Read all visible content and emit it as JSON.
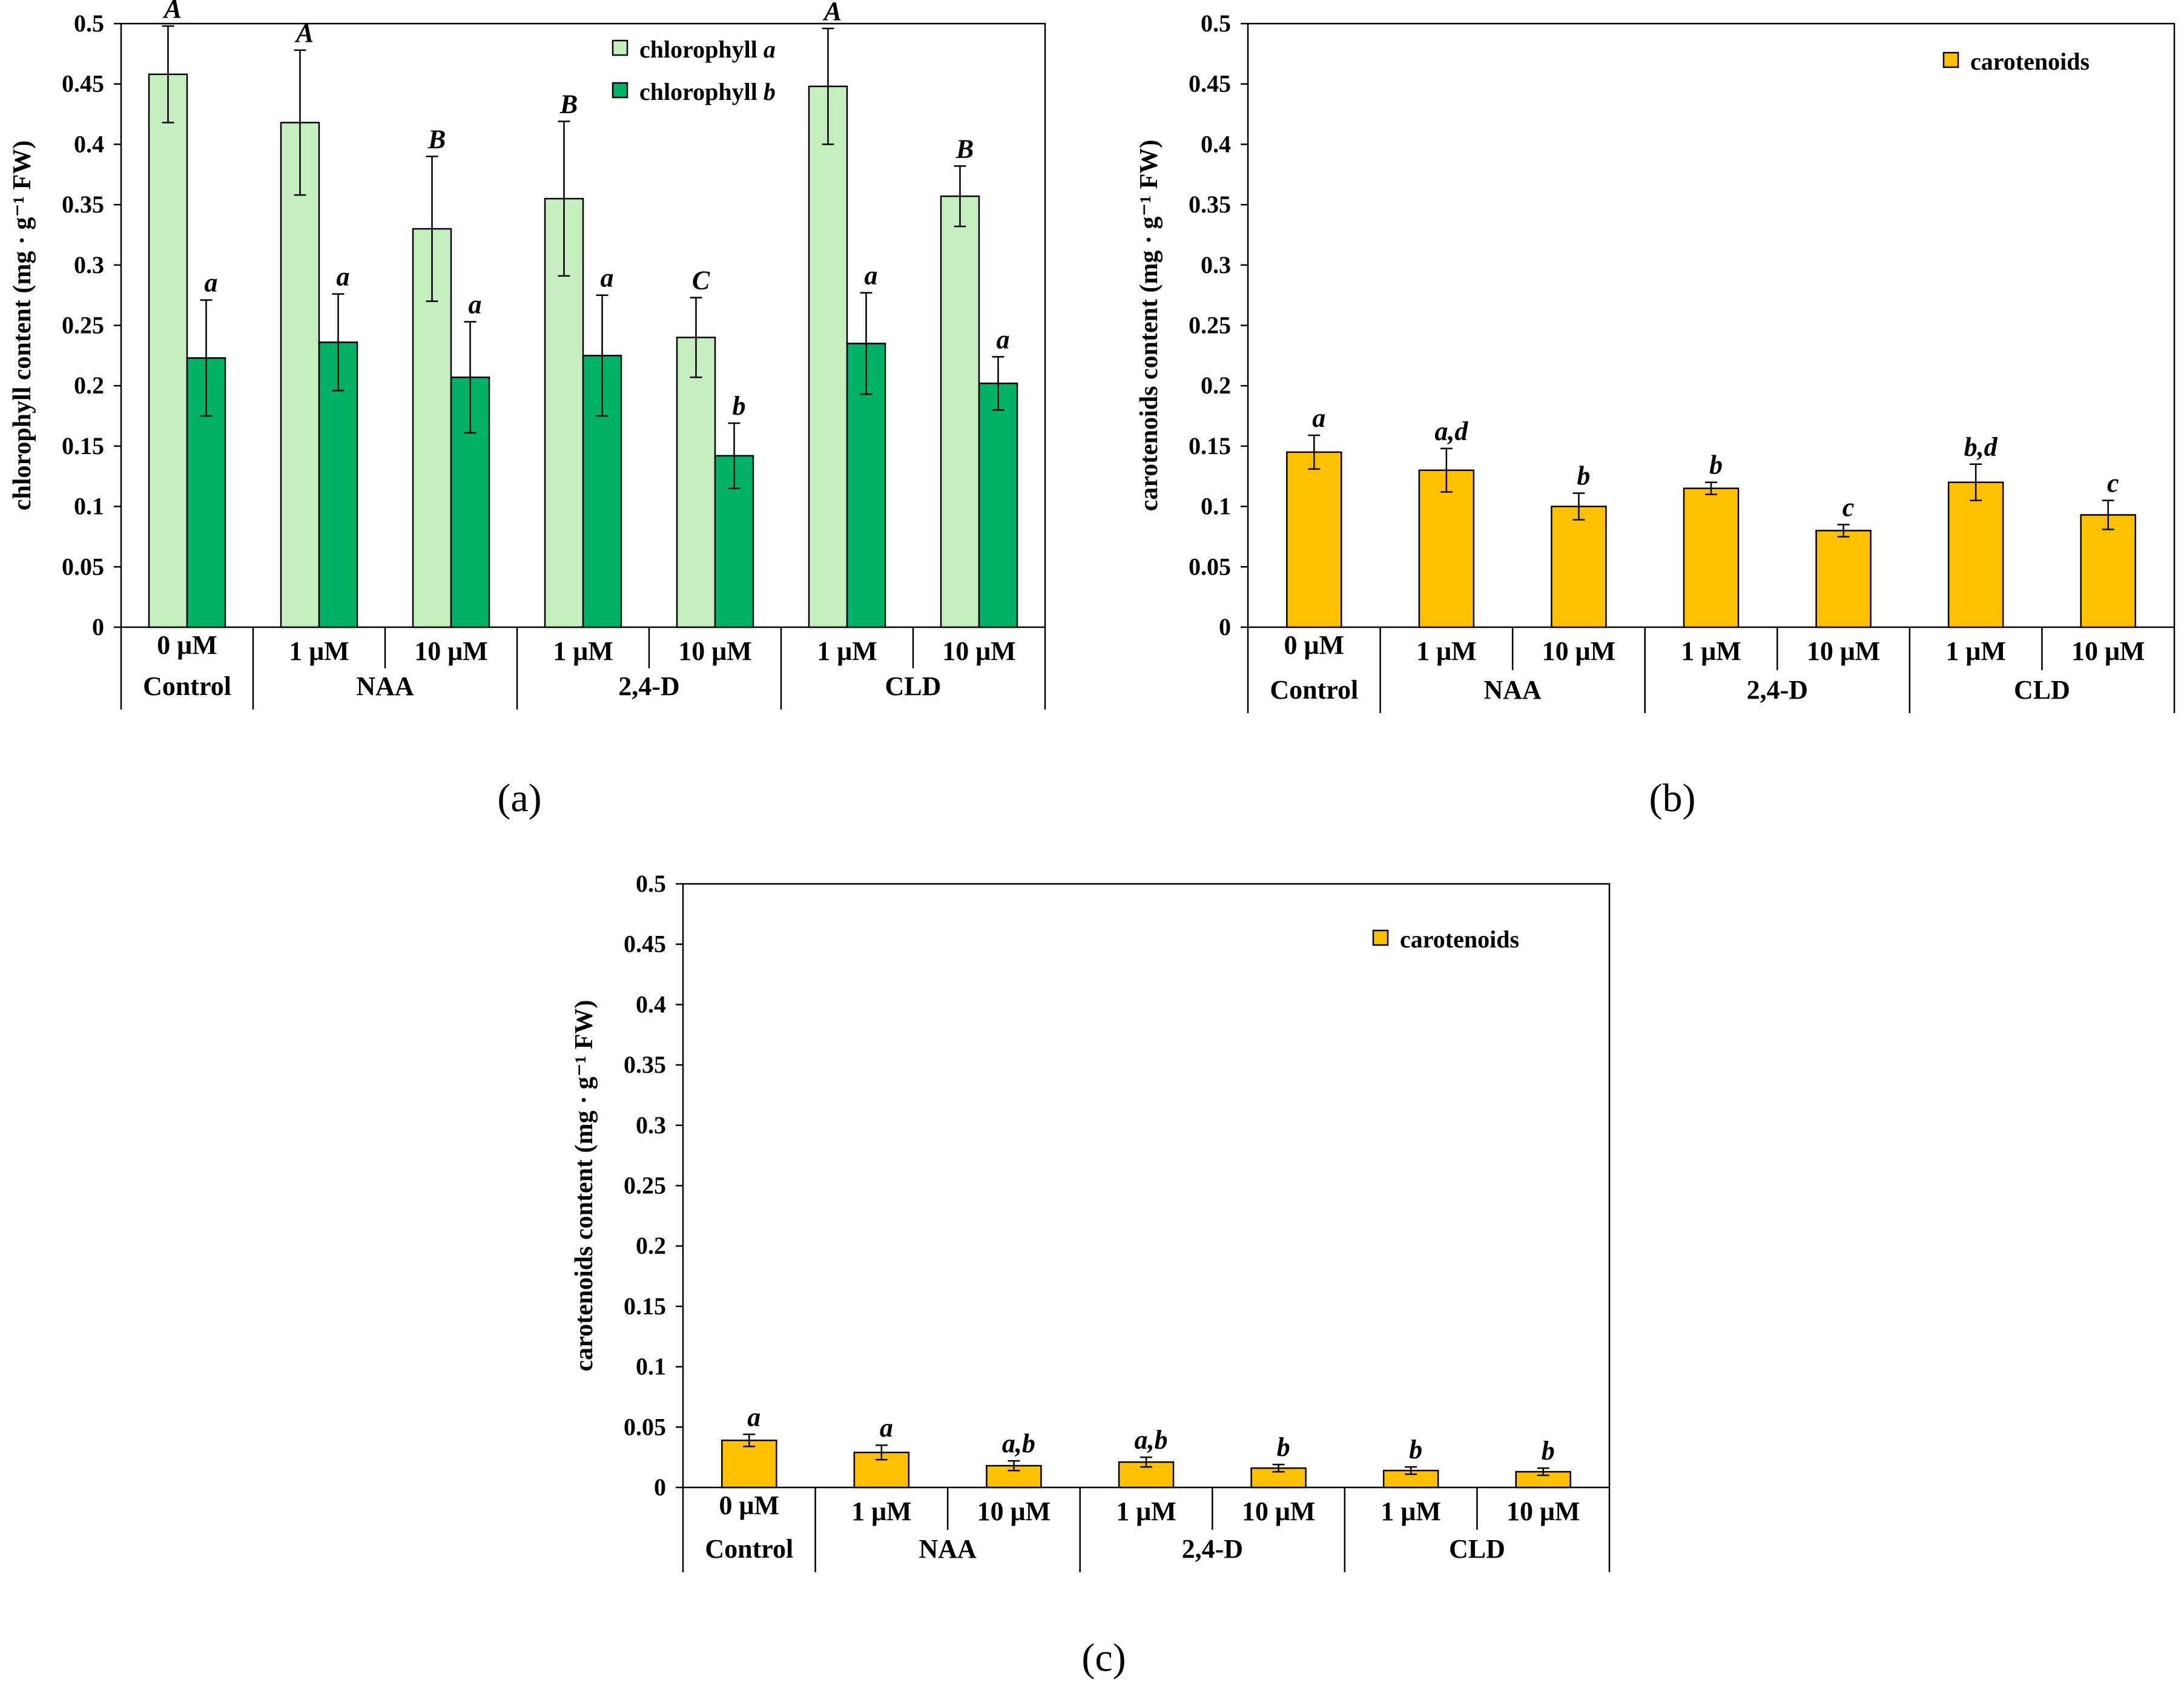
{
  "colors": {
    "chlorophyll_a": "#c6efc0",
    "chlorophyll_b": "#00b166",
    "carotenoids": "#ffc000",
    "axis": "#000000",
    "ghost_label": "#f2f2f2"
  },
  "chart_data": [
    {
      "id": "a",
      "panel_label": "(a)",
      "type": "bar",
      "ylabel": "chlorophyll content (mg · g⁻¹ FW)",
      "ylim": [
        0,
        0.5
      ],
      "yticks": [
        "0",
        "0.05",
        "0.1",
        "0.15",
        "0.2",
        "0.25",
        "0.3",
        "0.35",
        "0.4",
        "0.45",
        "0.5"
      ],
      "ghost_label": "0 μM",
      "categories": [
        "Control",
        "1 μM",
        "10 μM",
        "1 μM",
        "10 μM",
        "1 μM",
        "10 μM"
      ],
      "groups": [
        {
          "name": "Control",
          "span": [
            0,
            0
          ]
        },
        {
          "name": "NAA",
          "span": [
            1,
            2
          ]
        },
        {
          "name": "2,4-D",
          "span": [
            3,
            4
          ]
        },
        {
          "name": "CLD",
          "span": [
            5,
            6
          ]
        }
      ],
      "legend": {
        "position": "top-right",
        "entries": [
          "chlorophyll a",
          "chlorophyll b"
        ]
      },
      "series": [
        {
          "name": "chlorophyll a",
          "color_key": "chlorophyll_a",
          "values": [
            0.458,
            0.418,
            0.33,
            0.355,
            0.24,
            0.448,
            0.357
          ],
          "errors": [
            0.04,
            0.06,
            0.06,
            0.064,
            0.033,
            0.048,
            0.025
          ],
          "significance": [
            "A",
            "A",
            "B",
            "B",
            "C",
            "A",
            "B"
          ]
        },
        {
          "name": "chlorophyll b",
          "color_key": "chlorophyll_b",
          "values": [
            0.223,
            0.236,
            0.207,
            0.225,
            0.142,
            0.235,
            0.202
          ],
          "errors": [
            0.048,
            0.04,
            0.046,
            0.05,
            0.027,
            0.042,
            0.022
          ],
          "significance": [
            "a",
            "a",
            "a",
            "a",
            "b",
            "a",
            "a"
          ]
        }
      ]
    },
    {
      "id": "b",
      "panel_label": "(b)",
      "type": "bar",
      "ylabel": "carotenoids content (mg · g⁻¹ FW)",
      "ylim": [
        0,
        0.5
      ],
      "yticks": [
        "0",
        "0.05",
        "0.1",
        "0.15",
        "0.2",
        "0.25",
        "0.3",
        "0.35",
        "0.4",
        "0.45",
        "0.5"
      ],
      "ghost_label": "0 μM",
      "categories": [
        "Control",
        "1 μM",
        "10 μM",
        "1 μM",
        "10 μM",
        "1 μM",
        "10 μM"
      ],
      "groups": [
        {
          "name": "Control",
          "span": [
            0,
            0
          ]
        },
        {
          "name": "NAA",
          "span": [
            1,
            2
          ]
        },
        {
          "name": "2,4-D",
          "span": [
            3,
            4
          ]
        },
        {
          "name": "CLD",
          "span": [
            5,
            6
          ]
        }
      ],
      "legend": {
        "position": "top-right",
        "entries": [
          "carotenoids"
        ]
      },
      "series": [
        {
          "name": "carotenoids",
          "color_key": "carotenoids",
          "values": [
            0.145,
            0.13,
            0.1,
            0.115,
            0.08,
            0.12,
            0.093
          ],
          "errors": [
            0.014,
            0.018,
            0.011,
            0.005,
            0.005,
            0.015,
            0.012
          ],
          "significance": [
            "a",
            "a,d",
            "b",
            "b",
            "c",
            "b,d",
            "c"
          ]
        }
      ]
    },
    {
      "id": "c",
      "panel_label": "(c)",
      "type": "bar",
      "ylabel": "carotenoids content (mg · g⁻¹ FW)",
      "ylim": [
        0,
        0.5
      ],
      "yticks": [
        "0",
        "0.05",
        "0.1",
        "0.15",
        "0.2",
        "0.25",
        "0.3",
        "0.35",
        "0.4",
        "0.45",
        "0.5"
      ],
      "ghost_label": "0 μM",
      "categories": [
        "Control",
        "1 μM",
        "10 μM",
        "1 μM",
        "10 μM",
        "1 μM",
        "10 μM"
      ],
      "groups": [
        {
          "name": "Control",
          "span": [
            0,
            0
          ]
        },
        {
          "name": "NAA",
          "span": [
            1,
            2
          ]
        },
        {
          "name": "2,4-D",
          "span": [
            3,
            4
          ]
        },
        {
          "name": "CLD",
          "span": [
            5,
            6
          ]
        }
      ],
      "legend": {
        "position": "top-right",
        "entries": [
          "carotenoids"
        ]
      },
      "series": [
        {
          "name": "carotenoids",
          "color_key": "carotenoids",
          "values": [
            0.039,
            0.029,
            0.018,
            0.021,
            0.016,
            0.014,
            0.013
          ],
          "errors": [
            0.005,
            0.006,
            0.004,
            0.004,
            0.003,
            0.003,
            0.003
          ],
          "significance": [
            "a",
            "a",
            "a,b",
            "a,b",
            "b",
            "b",
            "b"
          ]
        }
      ]
    }
  ]
}
